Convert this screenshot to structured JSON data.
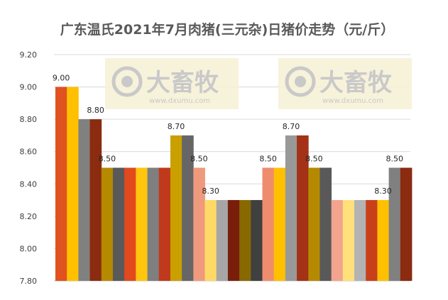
{
  "chart_data": {
    "type": "bar",
    "title": "广东温氏2021年7月肉猪(三元杂)日猪价走势（元/斤）",
    "xlabel": "",
    "ylabel": "",
    "ylim": [
      7.8,
      9.2
    ],
    "yticks": [
      "9.20",
      "9.00",
      "8.80",
      "8.60",
      "8.40",
      "8.20",
      "8.00",
      "7.80"
    ],
    "grid": true,
    "legend": "none",
    "values": [
      9.0,
      9.0,
      8.8,
      8.8,
      8.5,
      8.5,
      8.5,
      8.5,
      8.5,
      8.5,
      8.7,
      8.7,
      8.5,
      8.3,
      8.3,
      8.3,
      8.3,
      8.3,
      8.5,
      8.5,
      8.7,
      8.7,
      8.5,
      8.5,
      8.3,
      8.3,
      8.3,
      8.3,
      8.3,
      8.5,
      8.5
    ],
    "data_labels": [
      {
        "index": 0,
        "text": "9.00"
      },
      {
        "index": 3,
        "text": "8.80"
      },
      {
        "index": 4,
        "text": "8.50"
      },
      {
        "index": 10,
        "text": "8.70"
      },
      {
        "index": 12,
        "text": "8.50"
      },
      {
        "index": 13,
        "text": "8.30"
      },
      {
        "index": 18,
        "text": "8.50"
      },
      {
        "index": 20,
        "text": "8.70"
      },
      {
        "index": 22,
        "text": "8.50"
      },
      {
        "index": 28,
        "text": "8.30"
      },
      {
        "index": 29,
        "text": "8.50"
      }
    ],
    "colors": [
      "#e0521f",
      "#ffc000",
      "#808080",
      "#8b2b10",
      "#b58a00",
      "#595959",
      "#e24a1e",
      "#ffc60e",
      "#7f7f7f",
      "#c0391c",
      "#c9a000",
      "#666666",
      "#ef9a7c",
      "#ffd966",
      "#a6a6a6",
      "#7a1e0c",
      "#876900",
      "#404040",
      "#ef8c6e",
      "#ffc000",
      "#999999",
      "#a33216",
      "#b58a00",
      "#595959",
      "#f2a48e",
      "#ffe07a",
      "#b3b3b3",
      "#c8401a",
      "#ffc000",
      "#808080",
      "#8b2b10"
    ]
  },
  "watermark": {
    "name": "大畜牧",
    "url": "www.dxumu.com"
  }
}
